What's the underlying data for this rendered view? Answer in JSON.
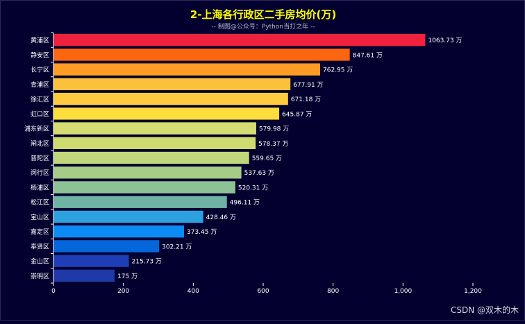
{
  "chart_data": {
    "type": "bar",
    "orientation": "horizontal",
    "title": "2-上海各行政区二手房均价(万)",
    "subtitle": "-- 制图@公众号：Python当打之年 --",
    "categories": [
      "黄浦区",
      "静安区",
      "长宁区",
      "青浦区",
      "徐汇区",
      "虹口区",
      "浦东新区",
      "闸北区",
      "普陀区",
      "闵行区",
      "杨浦区",
      "松江区",
      "宝山区",
      "嘉定区",
      "奉贤区",
      "金山区",
      "崇明区"
    ],
    "values": [
      1063.73,
      847.61,
      762.95,
      677.91,
      671.18,
      645.87,
      579.98,
      578.37,
      559.65,
      537.63,
      520.31,
      496.11,
      428.46,
      373.45,
      302.21,
      215.73,
      175
    ],
    "value_labels": [
      "1063.73 万",
      "847.61 万",
      "762.95 万",
      "677.91 万",
      "671.18 万",
      "645.87 万",
      "579.98 万",
      "578.37 万",
      "559.65 万",
      "537.63 万",
      "520.31 万",
      "496.11 万",
      "428.46 万",
      "373.45 万",
      "302.21 万",
      "215.73 万",
      "175 万"
    ],
    "colors": [
      "#f0213e",
      "#ff6610",
      "#ff9c24",
      "#fcc13c",
      "#ffcb3e",
      "#ffdd3c",
      "#d6dc74",
      "#cfdb6e",
      "#bfd67a",
      "#a6cd88",
      "#8dc196",
      "#6fb4a3",
      "#2da0de",
      "#0d8bf4",
      "#0466da",
      "#1e3eb8",
      "#1f3aa8"
    ],
    "x_ticks": [
      "0",
      "200",
      "400",
      "600",
      "800",
      "1,000",
      "1,200"
    ],
    "xlim": [
      0,
      1200
    ],
    "grid": false,
    "legend": "none",
    "title_color": "#ffff00",
    "text_color": "#ffffff"
  },
  "watermark": "CSDN @双木的木"
}
